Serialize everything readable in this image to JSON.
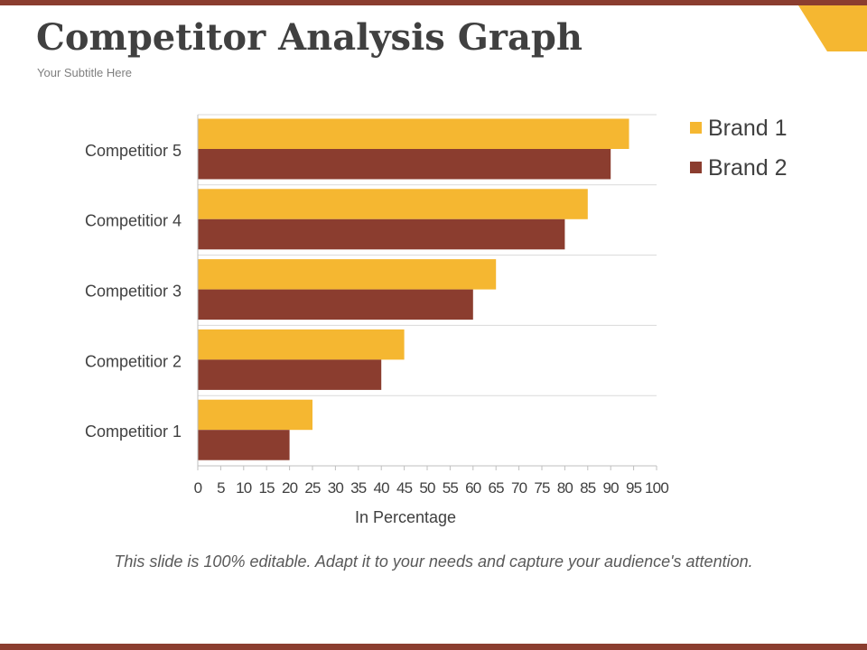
{
  "slide": {
    "title": "Competitor Analysis Graph",
    "subtitle": "Your Subtitle Here",
    "footer": "This slide is 100% editable. Adapt it to your needs and capture your audience's attention."
  },
  "colors": {
    "accent_bar": "#8B3D2F",
    "corner": "#F5B731",
    "brand1": "#F5B731",
    "brand2": "#8B3D2F"
  },
  "chart_data": {
    "type": "bar",
    "orientation": "horizontal",
    "categories": [
      "Competitior 1",
      "Competitior 2",
      "Competitior 3",
      "Competitior 4",
      "Competitior 5"
    ],
    "series": [
      {
        "name": "Brand 1",
        "values": [
          25,
          45,
          65,
          85,
          94
        ]
      },
      {
        "name": "Brand 2",
        "values": [
          20,
          40,
          60,
          80,
          90
        ]
      }
    ],
    "xlabel": "In Percentage",
    "ylabel": "",
    "xlim": [
      0,
      100
    ],
    "x_ticks": [
      0,
      5,
      10,
      15,
      20,
      25,
      30,
      35,
      40,
      45,
      50,
      55,
      60,
      65,
      70,
      75,
      80,
      85,
      90,
      95,
      100
    ],
    "grid": "horizontal lines between categories",
    "legend": "top-right"
  }
}
